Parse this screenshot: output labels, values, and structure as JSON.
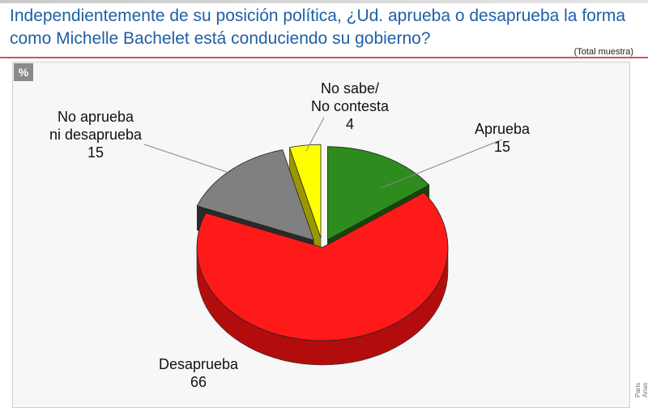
{
  "title_line1": "Independientemente de su posición política, ¿Ud. aprueba o desaprueba la forma",
  "title_line2": "como Michelle Bachelet está conduciendo su gobierno?",
  "sample_note": "(Total muestra)",
  "badge": "%",
  "credit": "Paris Arias",
  "chart_data": {
    "type": "pie",
    "slices": [
      {
        "label_lines": [
          "Aprueba"
        ],
        "value": 15,
        "color": "#2e8b1e",
        "side_color": "#1c5c10"
      },
      {
        "label_lines": [
          "Desaprueba"
        ],
        "value": 66,
        "color": "#ff1a1a",
        "side_color": "#b30c0c"
      },
      {
        "label_lines": [
          "No aprueba",
          "ni desaprueba"
        ],
        "value": 15,
        "color": "#808080",
        "side_color": "#3a3a3a"
      },
      {
        "label_lines": [
          "No sabe/",
          "No contesta"
        ],
        "value": 4,
        "color": "#ffff00",
        "side_color": "#b0ad00"
      }
    ]
  }
}
